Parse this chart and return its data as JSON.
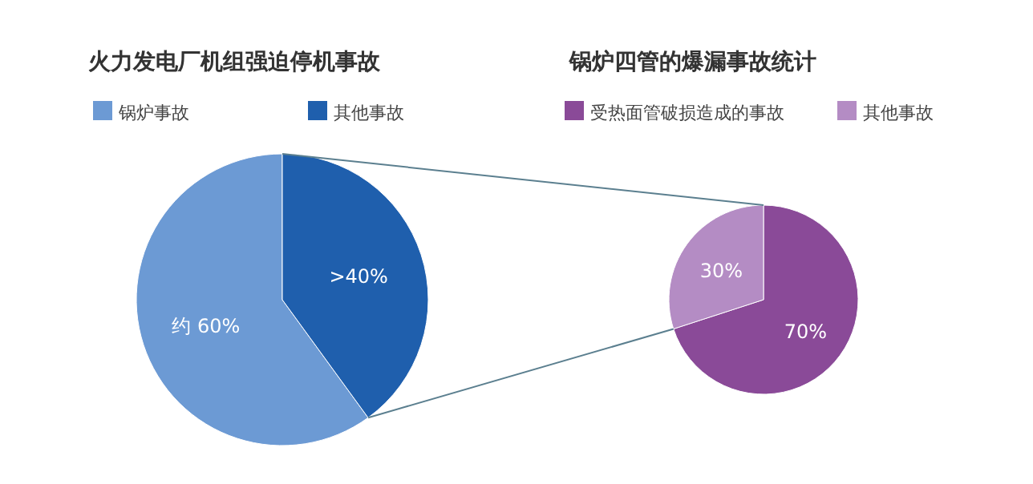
{
  "chart_data": [
    {
      "type": "pie",
      "title": "火力发电厂机组强迫停机事故",
      "categories": [
        "锅炉事故",
        "其他事故"
      ],
      "values": [
        60,
        40
      ],
      "colors": [
        "#6c9ad4",
        "#1f5fad"
      ],
      "value_labels": [
        "约 60%",
        ">40%"
      ],
      "legend": "top"
    },
    {
      "type": "pie",
      "title": "锅炉四管的爆漏事故统计",
      "categories": [
        "受热面管破损造成的事故",
        "其他事故"
      ],
      "values": [
        70,
        30
      ],
      "colors": [
        "#8a4a98",
        "#b48cc4"
      ],
      "value_labels": [
        "70%",
        "30%"
      ],
      "legend": "top"
    }
  ]
}
